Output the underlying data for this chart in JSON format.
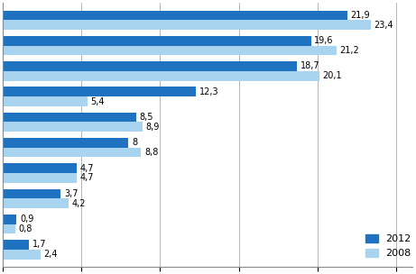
{
  "pairs": [
    {
      "val2012": 21.9,
      "val2008": 23.4
    },
    {
      "val2012": 19.6,
      "val2008": 21.2
    },
    {
      "val2012": 18.7,
      "val2008": 20.1
    },
    {
      "val2012": 12.3,
      "val2008": 5.4
    },
    {
      "val2012": 8.5,
      "val2008": 8.9
    },
    {
      "val2012": 8.0,
      "val2008": 8.8
    },
    {
      "val2012": 4.7,
      "val2008": 4.7
    },
    {
      "val2012": 3.7,
      "val2008": 4.2
    },
    {
      "val2012": 0.9,
      "val2008": 0.8
    },
    {
      "val2012": 1.7,
      "val2008": 2.4
    }
  ],
  "color2012": "#1F72BF",
  "color2008": "#A8D4F0",
  "bar_height": 0.38,
  "xlim": [
    0,
    26
  ],
  "xticks": [
    0,
    5,
    10,
    15,
    20,
    25
  ],
  "legend_labels": [
    "2012",
    "2008"
  ],
  "label_fontsize": 7,
  "tick_fontsize": 7,
  "legend_fontsize": 8,
  "background_color": "#ffffff",
  "grid_color": "#aaaaaa"
}
